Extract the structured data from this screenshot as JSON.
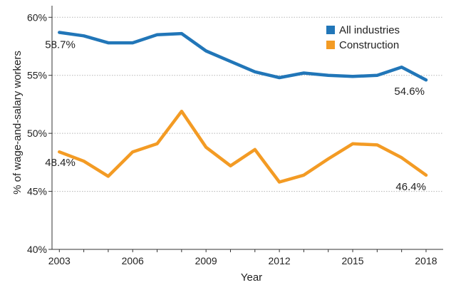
{
  "chart_data": {
    "type": "line",
    "xlabel": "Year",
    "ylabel": "% of wage-and-salary workers",
    "ylim": [
      40,
      61
    ],
    "xlim": [
      2002.7,
      2018.7
    ],
    "yticks": [
      40,
      45,
      50,
      55,
      60
    ],
    "ytick_labels": [
      "40%",
      "45%",
      "50%",
      "55%",
      "60%"
    ],
    "xticks": [
      2003,
      2006,
      2009,
      2012,
      2015,
      2018
    ],
    "xtick_labels": [
      "2003",
      "2006",
      "2009",
      "2012",
      "2015",
      "2018"
    ],
    "x": [
      2003,
      2004,
      2005,
      2006,
      2007,
      2008,
      2009,
      2010,
      2011,
      2012,
      2013,
      2014,
      2015,
      2016,
      2017,
      2018
    ],
    "grid": "horizontal dotted",
    "legend_position": "top-right",
    "series": [
      {
        "name": "All industries",
        "color": "#2176b8",
        "values": [
          58.7,
          58.4,
          57.8,
          57.8,
          58.5,
          58.6,
          57.1,
          56.2,
          55.3,
          54.8,
          55.2,
          55.0,
          54.9,
          55.0,
          55.7,
          54.6
        ]
      },
      {
        "name": "Construction",
        "color": "#f39b24",
        "values": [
          48.4,
          47.6,
          46.3,
          48.4,
          49.1,
          51.9,
          48.8,
          47.2,
          48.6,
          45.8,
          46.4,
          47.8,
          49.1,
          49.0,
          47.9,
          46.4
        ]
      }
    ],
    "annotations": [
      {
        "text": "58.7%",
        "series": 0,
        "index": 0
      },
      {
        "text": "54.6%",
        "series": 0,
        "index": 15
      },
      {
        "text": "48.4%",
        "series": 1,
        "index": 0
      },
      {
        "text": "46.4%",
        "series": 1,
        "index": 15
      }
    ]
  }
}
